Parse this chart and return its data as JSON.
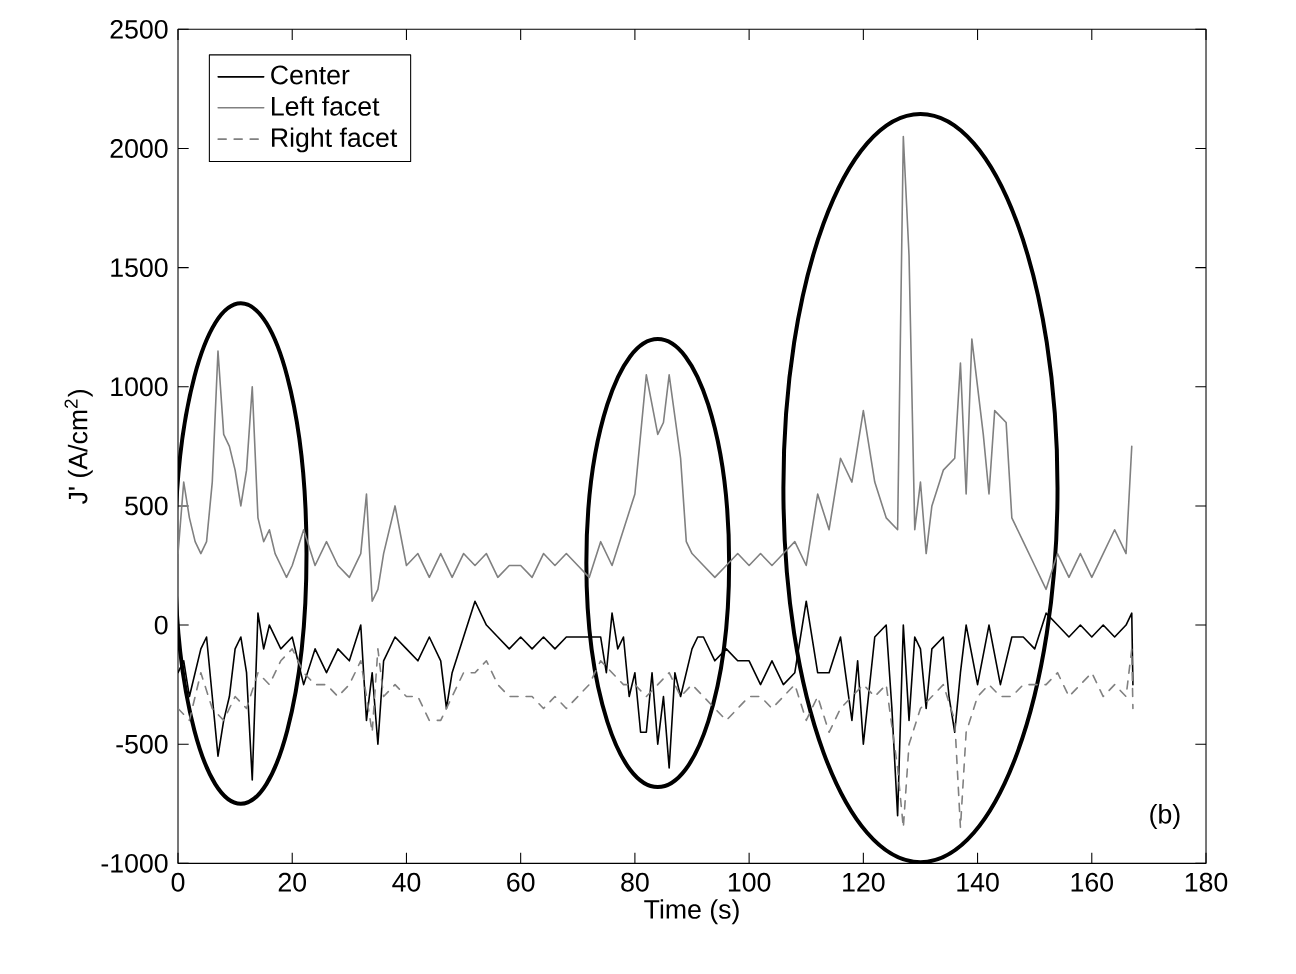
{
  "chart_data": {
    "type": "line",
    "xlabel": "Time (s)",
    "ylabel": "J' (A/cm$^{2}$)",
    "xlim": [
      0,
      180
    ],
    "xticks": [
      0,
      20,
      40,
      60,
      80,
      100,
      120,
      140,
      160,
      180
    ],
    "ylim": [
      -1000,
      2500
    ],
    "yticks": [
      -1000,
      -500,
      0,
      500,
      1000,
      1500,
      2000,
      2500
    ],
    "grid": false,
    "legend": "top left",
    "marker": "none",
    "annotations": [
      "(b)"
    ],
    "series": [
      {
        "name": "Center",
        "color": "#000000",
        "line_style": "solid",
        "x": [
          0,
          1,
          2,
          4,
          5,
          6,
          7,
          8,
          9,
          10,
          11,
          12,
          13,
          14,
          15,
          16,
          18,
          20,
          22,
          24,
          26,
          28,
          30,
          32,
          33,
          34,
          35,
          36,
          38,
          40,
          42,
          44,
          46,
          47,
          48,
          50,
          52,
          54,
          56,
          58,
          60,
          62,
          64,
          66,
          68,
          70,
          72,
          74,
          75,
          76,
          77,
          78,
          79,
          80,
          81,
          82,
          83,
          84,
          85,
          86,
          87,
          88,
          90,
          91,
          92,
          94,
          96,
          98,
          100,
          102,
          104,
          106,
          108,
          110,
          112,
          114,
          116,
          118,
          119,
          120,
          122,
          124,
          125,
          126,
          127,
          128,
          129,
          130,
          131,
          132,
          134,
          135,
          136,
          137,
          138,
          140,
          142,
          144,
          146,
          148,
          150,
          152,
          154,
          156,
          158,
          160,
          162,
          164,
          166,
          167,
          167.2
        ],
        "values": [
          -200,
          -150,
          -300,
          -100,
          -50,
          -300,
          -550,
          -400,
          -300,
          -100,
          -50,
          -200,
          -650,
          50,
          -100,
          0,
          -100,
          -50,
          -250,
          -100,
          -200,
          -100,
          -150,
          0,
          -400,
          -200,
          -500,
          -150,
          -50,
          -100,
          -150,
          -50,
          -150,
          -350,
          -200,
          -50,
          100,
          0,
          -50,
          -100,
          -50,
          -100,
          -50,
          -100,
          -50,
          -50,
          -50,
          -50,
          -200,
          50,
          -100,
          -50,
          -300,
          -200,
          -450,
          -450,
          -200,
          -500,
          -300,
          -600,
          -200,
          -300,
          -100,
          -50,
          -50,
          -150,
          -100,
          -150,
          -150,
          -250,
          -150,
          -250,
          -200,
          100,
          -200,
          -200,
          -50,
          -400,
          -150,
          -500,
          -50,
          0,
          -350,
          -800,
          0,
          -400,
          -50,
          -100,
          -350,
          -100,
          -50,
          -300,
          -450,
          -200,
          0,
          -250,
          0,
          -250,
          -50,
          -50,
          -100,
          50,
          0,
          -50,
          0,
          -50,
          0,
          -50,
          0,
          50,
          -250
        ]
      },
      {
        "name": "Left facet",
        "color": "#808080",
        "line_style": "solid",
        "x": [
          0,
          1,
          2,
          3,
          4,
          5,
          6,
          7,
          8,
          9,
          10,
          11,
          12,
          13,
          14,
          15,
          16,
          17,
          18,
          19,
          20,
          22,
          24,
          26,
          28,
          30,
          32,
          33,
          34,
          35,
          36,
          38,
          40,
          42,
          44,
          46,
          48,
          50,
          52,
          54,
          56,
          58,
          60,
          62,
          64,
          66,
          68,
          70,
          72,
          74,
          76,
          78,
          80,
          82,
          84,
          85,
          86,
          88,
          89,
          90,
          92,
          94,
          96,
          98,
          100,
          102,
          104,
          106,
          108,
          110,
          112,
          114,
          116,
          118,
          120,
          122,
          124,
          126,
          127,
          128,
          129,
          130,
          131,
          132,
          134,
          136,
          137,
          138,
          139,
          141,
          142,
          143,
          145,
          146,
          148,
          150,
          152,
          154,
          156,
          158,
          160,
          162,
          164,
          166,
          167
        ],
        "values": [
          300,
          600,
          450,
          350,
          300,
          350,
          600,
          1150,
          800,
          750,
          650,
          500,
          650,
          1000,
          450,
          350,
          400,
          300,
          250,
          200,
          250,
          400,
          250,
          350,
          250,
          200,
          300,
          550,
          100,
          150,
          300,
          500,
          250,
          300,
          200,
          300,
          200,
          300,
          250,
          300,
          200,
          250,
          250,
          200,
          300,
          250,
          300,
          250,
          200,
          350,
          250,
          400,
          550,
          1050,
          800,
          850,
          1050,
          700,
          350,
          300,
          250,
          200,
          250,
          300,
          250,
          300,
          250,
          300,
          350,
          250,
          550,
          400,
          700,
          600,
          900,
          600,
          450,
          400,
          2050,
          1550,
          400,
          600,
          300,
          500,
          650,
          700,
          1100,
          550,
          1200,
          800,
          550,
          900,
          850,
          450,
          350,
          250,
          150,
          300,
          200,
          300,
          200,
          300,
          400,
          300,
          750
        ]
      },
      {
        "name": "Right facet",
        "color": "#808080",
        "line_style": "dashed",
        "x": [
          0,
          2,
          4,
          6,
          8,
          10,
          12,
          14,
          16,
          18,
          20,
          22,
          24,
          26,
          28,
          30,
          32,
          34,
          35,
          36,
          38,
          40,
          42,
          44,
          46,
          48,
          50,
          52,
          54,
          56,
          58,
          60,
          62,
          64,
          66,
          68,
          70,
          72,
          74,
          76,
          78,
          80,
          82,
          84,
          86,
          88,
          90,
          92,
          94,
          96,
          98,
          100,
          102,
          104,
          106,
          108,
          110,
          112,
          114,
          116,
          118,
          120,
          122,
          124,
          126,
          127,
          128,
          130,
          132,
          134,
          136,
          137,
          138,
          140,
          142,
          144,
          146,
          148,
          150,
          152,
          154,
          156,
          158,
          160,
          162,
          164,
          166,
          167,
          167.2
        ],
        "values": [
          -350,
          -400,
          -200,
          -350,
          -400,
          -300,
          -350,
          -200,
          -250,
          -150,
          -100,
          -200,
          -250,
          -250,
          -300,
          -250,
          -150,
          -450,
          -100,
          -300,
          -250,
          -300,
          -300,
          -400,
          -400,
          -300,
          -200,
          -200,
          -150,
          -250,
          -300,
          -300,
          -300,
          -350,
          -300,
          -350,
          -300,
          -250,
          -150,
          -200,
          -250,
          -250,
          -300,
          -250,
          -200,
          -300,
          -250,
          -300,
          -350,
          -400,
          -350,
          -300,
          -300,
          -350,
          -300,
          -250,
          -400,
          -300,
          -450,
          -350,
          -300,
          -250,
          -300,
          -250,
          -600,
          -850,
          -500,
          -350,
          -300,
          -250,
          -400,
          -850,
          -450,
          -300,
          -250,
          -300,
          -300,
          -250,
          -250,
          -250,
          -200,
          -300,
          -250,
          -200,
          -300,
          -250,
          -300,
          -100,
          -350
        ]
      }
    ]
  }
}
